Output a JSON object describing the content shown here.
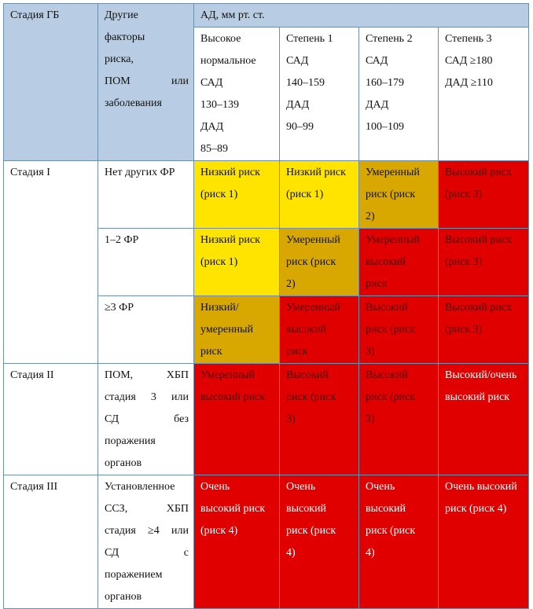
{
  "header": {
    "stage_col": "Стадия ГБ",
    "factors_col": [
      "Другие",
      "факторы",
      "риска,",
      "ПОМ          или",
      "заболевания"
    ],
    "bp_group": "АД, мм рт. ст.",
    "bp_cols": [
      [
        "Высокое",
        "нормальное",
        "САД",
        "130–139",
        "ДАД",
        "85–89"
      ],
      [
        "Степень 1",
        "САД",
        "140–159",
        "ДАД",
        "90–99"
      ],
      [
        "Степень 2",
        "САД",
        "160–179",
        "ДАД",
        "100–109"
      ],
      [
        "Степень 3",
        "САД ≥180",
        "ДАД ≥110"
      ]
    ]
  },
  "rows": [
    {
      "stage": "Стадия I",
      "factor": [
        "Нет других ФР"
      ],
      "justify": false,
      "cells": [
        {
          "level": "low",
          "lines": [
            "Низкий    риск",
            "(риск 1)"
          ]
        },
        {
          "level": "low",
          "lines": [
            "Низкий риск",
            "(риск 1)"
          ]
        },
        {
          "level": "mod",
          "lines": [
            "Умеренный",
            "риск       (риск",
            "2)"
          ]
        },
        {
          "level": "high",
          "lines": [
            "Высокий     риск",
            "(риск 3)"
          ]
        }
      ]
    },
    {
      "stage": "",
      "factor": [
        "1–2 ФР"
      ],
      "justify": false,
      "cells": [
        {
          "level": "low",
          "lines": [
            "Низкий    риск",
            "(риск 1)"
          ]
        },
        {
          "level": "mod",
          "lines": [
            "Умеренный",
            "риск       (риск",
            "2)"
          ]
        },
        {
          "level": "high",
          "lines": [
            "Умеренный",
            "высокий",
            "риск"
          ]
        },
        {
          "level": "high",
          "lines": [
            "Высокий     риск",
            "(риск 3)"
          ]
        }
      ]
    },
    {
      "stage": "",
      "factor": [
        "≥3 ФР"
      ],
      "justify": false,
      "cells": [
        {
          "level": "mod",
          "lines": [
            "Низкий/",
            "умеренный",
            "риск"
          ]
        },
        {
          "level": "high",
          "lines": [
            "Умеренный",
            "высокий",
            "риск"
          ]
        },
        {
          "level": "high",
          "lines": [
            "Высокий",
            "риск       (риск",
            "3)"
          ]
        },
        {
          "level": "high",
          "lines": [
            "Высокий     риск",
            "(риск 3)"
          ]
        }
      ]
    },
    {
      "stage": "Стадия II",
      "factor": [
        "ПОМ,        ХБП",
        "стадия    3    или",
        "СД                без",
        "поражения",
        "органов"
      ],
      "justify": true,
      "cells": [
        {
          "level": "high",
          "lines": [
            "Умеренный",
            "высокий риск"
          ]
        },
        {
          "level": "high",
          "lines": [
            "Высокий",
            "риск       (риск",
            "3)"
          ]
        },
        {
          "level": "high",
          "lines": [
            "Высокий",
            "риск       (риск",
            "3)"
          ]
        },
        {
          "level": "vhigh",
          "lines": [
            "Высокий/очень",
            "высокий риск"
          ]
        }
      ]
    },
    {
      "stage": "Стадия III",
      "factor": [
        "Установленное",
        "ССЗ,        ХБП",
        "стадия  ≥4  или",
        "СД                 с",
        "поражением",
        "органов"
      ],
      "justify": true,
      "cells": [
        {
          "level": "vhigh",
          "lines": [
            "Очень",
            "высокий    риск",
            "(риск 4)"
          ]
        },
        {
          "level": "vhigh",
          "lines": [
            "Очень",
            "высокий",
            "риск       (риск",
            "4)"
          ]
        },
        {
          "level": "vhigh",
          "lines": [
            "Очень",
            "высокий",
            "риск       (риск",
            "4)"
          ]
        },
        {
          "level": "vhigh",
          "lines": [
            "Очень высокий",
            "риск (риск 4)"
          ]
        }
      ]
    }
  ]
}
